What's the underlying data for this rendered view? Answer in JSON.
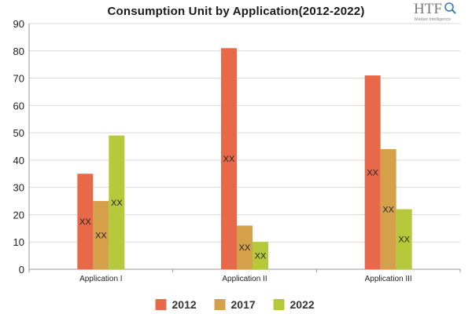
{
  "logo": {
    "text": "HTF",
    "subtitle": "Market Intelligence"
  },
  "chart_data": {
    "type": "bar",
    "title": "Consumption Unit by  Application(2012-2022)",
    "xlabel": "",
    "ylabel": "",
    "categories": [
      "Application I",
      "Application II",
      "Application III"
    ],
    "ylim": [
      0,
      90
    ],
    "yticks": [
      0,
      10,
      20,
      30,
      40,
      50,
      60,
      70,
      80,
      90
    ],
    "grid": true,
    "legend_position": "bottom",
    "series": [
      {
        "name": "2012",
        "color": "#e8684a",
        "values": [
          35,
          81,
          71
        ],
        "data_labels": [
          "XX",
          "XX",
          "XX"
        ]
      },
      {
        "name": "2017",
        "color": "#d4a04a",
        "values": [
          25,
          16,
          44
        ],
        "data_labels": [
          "XX",
          "XX",
          "XX"
        ]
      },
      {
        "name": "2022",
        "color": "#b5c93a",
        "values": [
          49,
          10,
          22
        ],
        "data_labels": [
          "XX",
          "XX",
          "XX"
        ]
      }
    ]
  }
}
